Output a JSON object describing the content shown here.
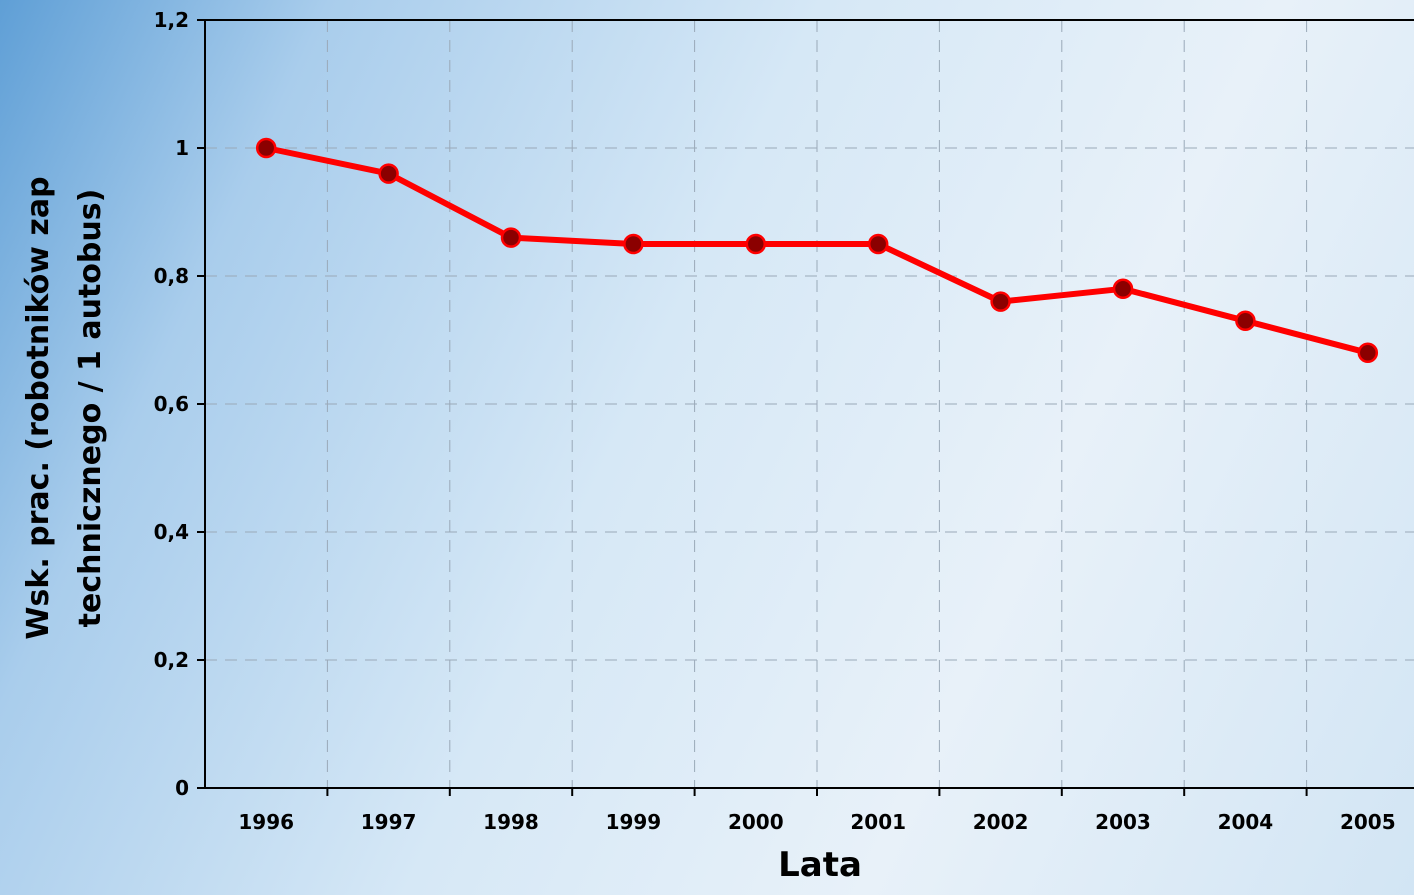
{
  "chart_data": {
    "type": "line",
    "x_label": "Lata",
    "y_label": [
      "Wsk. prac. (robotników zap",
      "technicznego / 1 autobus)"
    ],
    "categories": [
      "1996",
      "1997",
      "1998",
      "1999",
      "2000",
      "2001",
      "2002",
      "2003",
      "2004",
      "2005"
    ],
    "series": [
      {
        "color": "#ff0000",
        "marker_color": "#8b0000",
        "values": [
          1.0,
          0.96,
          0.86,
          0.85,
          0.85,
          0.85,
          0.76,
          0.78,
          0.73,
          0.68
        ]
      }
    ],
    "ylim": [
      0,
      1.2
    ],
    "yticks": [
      0,
      {
        "value": 0.2,
        "label": "0,2"
      },
      {
        "value": 0.4,
        "label": "0,4"
      },
      {
        "value": 0.6,
        "label": "0,6"
      },
      {
        "value": 0.8,
        "label": "0,8"
      },
      1,
      {
        "value": 1.2,
        "label": "1,2"
      }
    ],
    "grid": true
  }
}
